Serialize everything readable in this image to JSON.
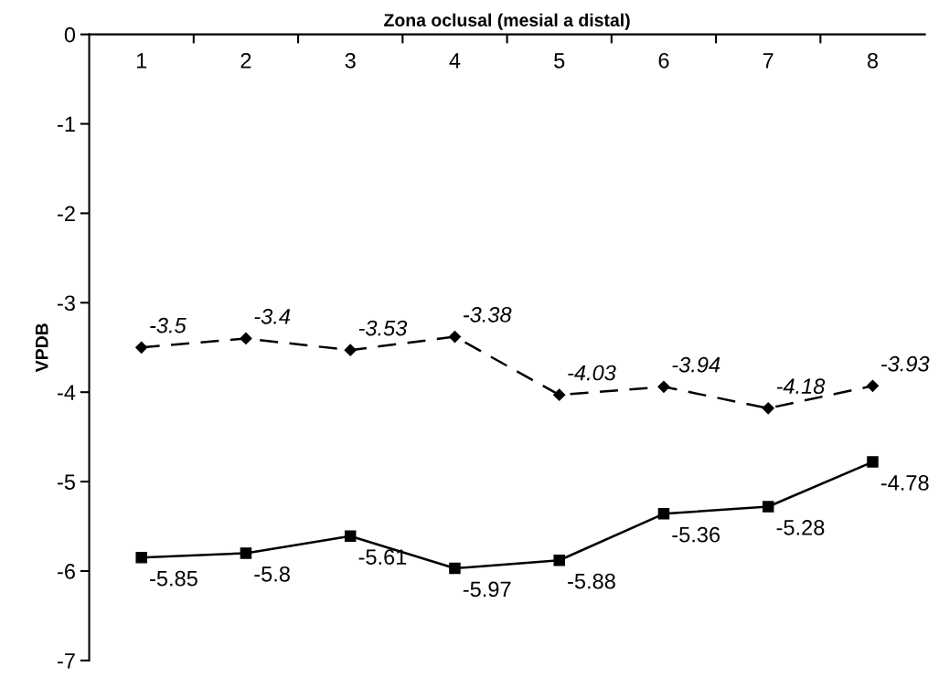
{
  "chart_data": {
    "type": "line",
    "xlabel": "Zona oclusal (mesial a distal)",
    "ylabel": "VPDB",
    "categories": [
      "1",
      "2",
      "3",
      "4",
      "5",
      "6",
      "7",
      "8"
    ],
    "series": [
      {
        "color": "#000000",
        "marker": "diamond",
        "line_style": "dashed",
        "values": [
          -3.5,
          -3.4,
          -3.53,
          -3.38,
          -4.03,
          -3.94,
          -4.18,
          -3.93
        ]
      },
      {
        "color": "#000000",
        "marker": "square",
        "line_style": "solid",
        "values": [
          -5.85,
          -5.8,
          -5.61,
          -5.97,
          -5.88,
          -5.36,
          -5.28,
          -4.78
        ]
      }
    ],
    "ylim": [
      -7,
      0
    ],
    "yticks": [
      -7,
      -6,
      -5,
      -4,
      -3,
      -2,
      -1,
      0
    ],
    "data_labels": true,
    "grid": false,
    "legend": false
  }
}
